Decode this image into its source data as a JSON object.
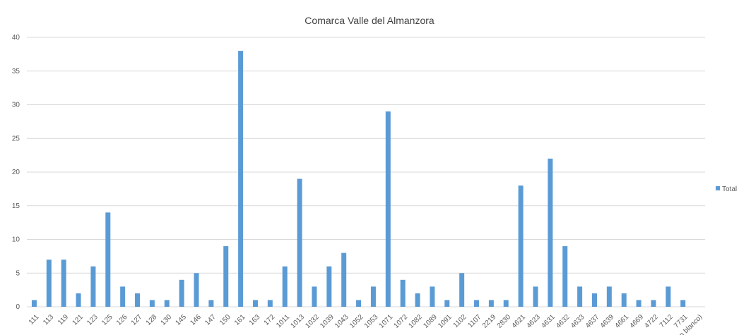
{
  "chart_data": {
    "type": "bar",
    "title": "Comarca Valle del Almanzora",
    "categories": [
      "111",
      "113",
      "119",
      "121",
      "123",
      "125",
      "126",
      "127",
      "128",
      "130",
      "145",
      "146",
      "147",
      "150",
      "161",
      "163",
      "172",
      "1011",
      "1013",
      "1032",
      "1039",
      "1043",
      "1052",
      "1053",
      "1071",
      "1072",
      "1082",
      "1089",
      "1091",
      "1102",
      "1107",
      "2219",
      "2830",
      "4621",
      "4623",
      "4631",
      "4632",
      "4633",
      "4637",
      "4639",
      "4661",
      "4669",
      "4722",
      "7112",
      "7731",
      "(en blanco)"
    ],
    "series": [
      {
        "name": "Total",
        "color": "#5b9bd5",
        "values": [
          1,
          7,
          7,
          2,
          6,
          14,
          3,
          2,
          1,
          1,
          4,
          5,
          1,
          9,
          38,
          1,
          1,
          6,
          19,
          3,
          6,
          8,
          1,
          3,
          29,
          4,
          2,
          3,
          1,
          5,
          1,
          1,
          1,
          18,
          3,
          22,
          9,
          3,
          2,
          3,
          2,
          1,
          1,
          3,
          1,
          null
        ]
      }
    ],
    "ylim": [
      0,
      40
    ],
    "yticks": [
      0,
      5,
      10,
      15,
      20,
      25,
      30,
      35,
      40
    ],
    "grid": true,
    "legend": "right"
  }
}
